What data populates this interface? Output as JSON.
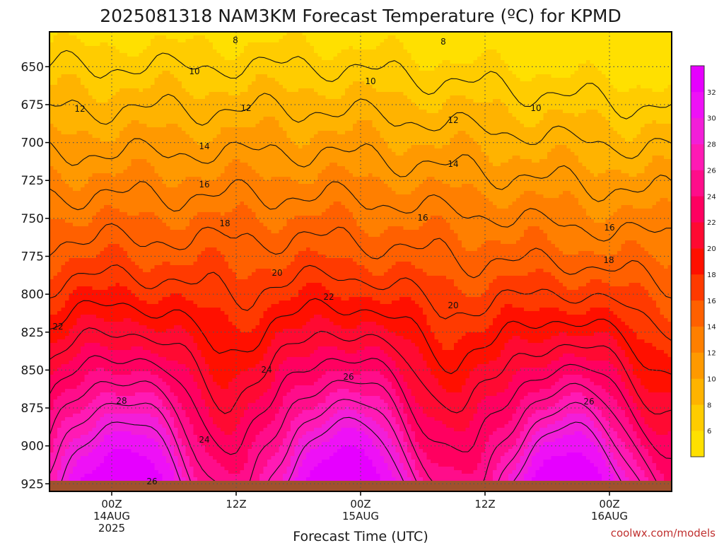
{
  "chart_data": {
    "type": "heatmap",
    "title": "2025081318 NAM3KM Forecast Temperature (ºC) for KPMD",
    "xlabel": "Forecast Time (UTC)",
    "ylabel": "",
    "credit": "coolwx.com/models",
    "y_axis": {
      "ticks": [
        "650",
        "675",
        "700",
        "725",
        "750",
        "775",
        "800",
        "825",
        "850",
        "875",
        "900",
        "925"
      ],
      "range": [
        627,
        930
      ],
      "inverted": true
    },
    "x_axis": {
      "ticks": [
        {
          "lines": [
            "00Z",
            "14AUG",
            "2025"
          ]
        },
        {
          "lines": [
            "12Z"
          ]
        },
        {
          "lines": [
            "00Z",
            "15AUG"
          ]
        },
        {
          "lines": [
            "12Z"
          ]
        },
        {
          "lines": [
            "00Z",
            "16AUG"
          ]
        }
      ]
    },
    "grid": true,
    "colorbar": {
      "ticks": [
        "6",
        "8",
        "10",
        "12",
        "14",
        "16",
        "18",
        "20",
        "22",
        "24",
        "26",
        "28",
        "30",
        "32"
      ],
      "bins": [
        {
          "min": 5,
          "color": "#ffe000"
        },
        {
          "min": 7,
          "color": "#ffcc00"
        },
        {
          "min": 9,
          "color": "#ffb300"
        },
        {
          "min": 11,
          "color": "#ff9900"
        },
        {
          "min": 13,
          "color": "#ff7f00"
        },
        {
          "min": 15,
          "color": "#ff6000"
        },
        {
          "min": 17,
          "color": "#ff3a00"
        },
        {
          "min": 19,
          "color": "#ff1000"
        },
        {
          "min": 21,
          "color": "#ff0a32"
        },
        {
          "min": 23,
          "color": "#ff0060"
        },
        {
          "min": 25,
          "color": "#ff0d8a"
        },
        {
          "min": 27,
          "color": "#ff1ab4"
        },
        {
          "min": 29,
          "color": "#f21ed8"
        },
        {
          "min": 31,
          "color": "#ee11f6"
        },
        {
          "min": 33,
          "color": "#e600ff"
        }
      ]
    },
    "ground_color": "#a0522d",
    "contour_labels": [
      {
        "text": "8"
      },
      {
        "text": "8"
      },
      {
        "text": "10"
      },
      {
        "text": "10"
      },
      {
        "text": "10"
      },
      {
        "text": "12"
      },
      {
        "text": "12"
      },
      {
        "text": "12"
      },
      {
        "text": "14"
      },
      {
        "text": "14"
      },
      {
        "text": "16"
      },
      {
        "text": "16"
      },
      {
        "text": "16"
      },
      {
        "text": "18"
      },
      {
        "text": "18"
      },
      {
        "text": "20"
      },
      {
        "text": "20"
      },
      {
        "text": "22"
      },
      {
        "text": "22"
      },
      {
        "text": "24"
      },
      {
        "text": "24"
      },
      {
        "text": "26"
      },
      {
        "text": "26"
      },
      {
        "text": "26"
      },
      {
        "text": "28"
      }
    ]
  }
}
